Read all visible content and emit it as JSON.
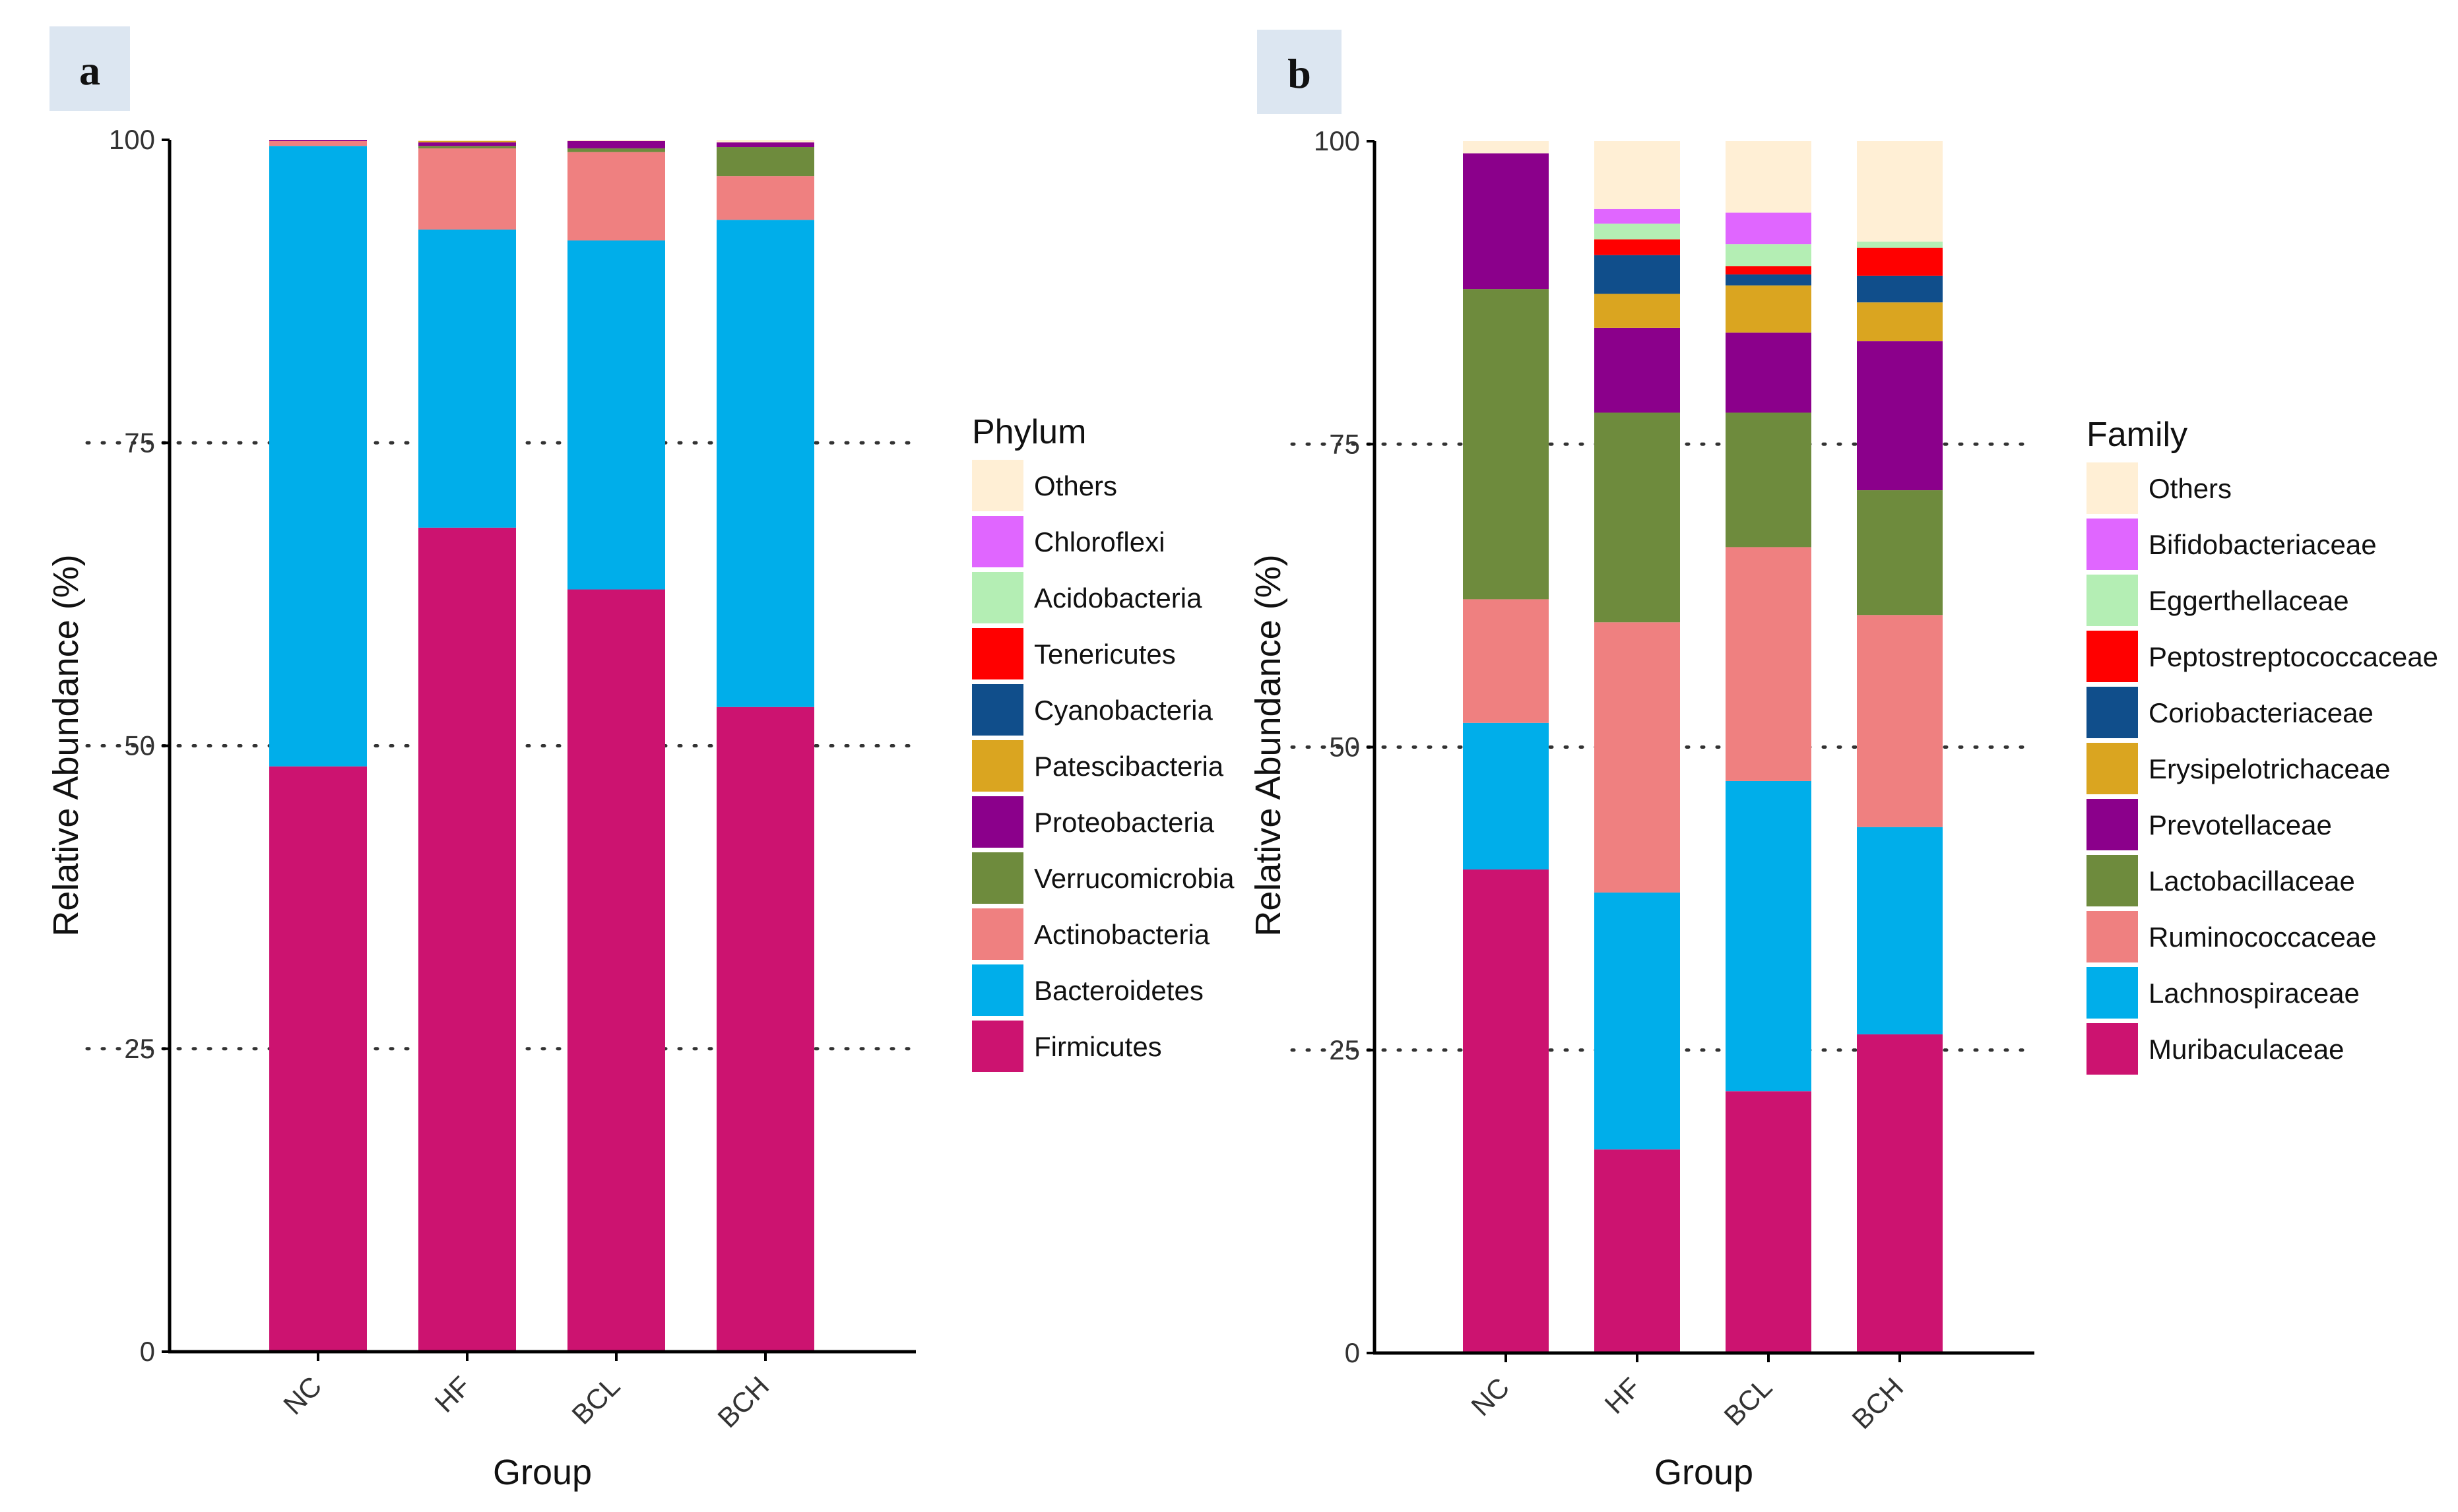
{
  "chart_data": [
    {
      "panel": "a",
      "type": "bar",
      "stacked": true,
      "xlabel": "Group",
      "ylabel": "Relative Abundance (%)",
      "ylim": [
        0,
        100
      ],
      "yticks": [
        "0",
        "25",
        "50",
        "75",
        "100"
      ],
      "gridlines": "dotted at 25, 50, 75",
      "categories": [
        "NC",
        "HF",
        "BCL",
        "BCH"
      ],
      "legend_title": "Phylum",
      "legend_position": "right",
      "series": [
        {
          "name": "Firmicutes",
          "color": "#CC1370",
          "values": [
            48.3,
            68.0,
            62.9,
            53.2
          ]
        },
        {
          "name": "Bacteroidetes",
          "color": "#00AEEA",
          "values": [
            51.2,
            24.6,
            28.8,
            40.2
          ]
        },
        {
          "name": "Actinobacteria",
          "color": "#EF8080",
          "values": [
            0.4,
            6.7,
            7.3,
            3.6
          ]
        },
        {
          "name": "Verrucomicrobia",
          "color": "#6E8B3D",
          "values": [
            0.0,
            0.2,
            0.3,
            2.4
          ]
        },
        {
          "name": "Proteobacteria",
          "color": "#8B008B",
          "values": [
            0.1,
            0.3,
            0.6,
            0.4
          ]
        },
        {
          "name": "Patescibacteria",
          "color": "#DAA520",
          "values": [
            0.0,
            0.1,
            0.0,
            0.0
          ]
        },
        {
          "name": "Cyanobacteria",
          "color": "#104E8B",
          "values": [
            0.0,
            0.0,
            0.0,
            0.0
          ]
        },
        {
          "name": "Tenericutes",
          "color": "#FF0000",
          "values": [
            0.0,
            0.0,
            0.0,
            0.0
          ]
        },
        {
          "name": "Acidobacteria",
          "color": "#B4EEB4",
          "values": [
            0.0,
            0.0,
            0.0,
            0.0
          ]
        },
        {
          "name": "Chloroflexi",
          "color": "#E066FF",
          "values": [
            0.0,
            0.0,
            0.0,
            0.0
          ]
        },
        {
          "name": "Others",
          "color": "#FFEFD5",
          "values": [
            0.0,
            0.1,
            0.1,
            0.2
          ]
        }
      ]
    },
    {
      "panel": "b",
      "type": "bar",
      "stacked": true,
      "xlabel": "Group",
      "ylabel": "Relative Abundance (%)",
      "ylim": [
        0,
        100
      ],
      "yticks": [
        "0",
        "25",
        "50",
        "75",
        "100"
      ],
      "gridlines": "dotted at 25, 50, 75",
      "categories": [
        "NC",
        "HF",
        "BCL",
        "BCH"
      ],
      "legend_title": "Family",
      "legend_position": "right",
      "series": [
        {
          "name": "Muribaculaceae",
          "color": "#CC1370",
          "values": [
            39.9,
            16.8,
            21.6,
            26.3
          ]
        },
        {
          "name": "Lachnospiraceae",
          "color": "#00AEEA",
          "values": [
            12.1,
            21.2,
            25.6,
            17.1
          ]
        },
        {
          "name": "Ruminococcaceae",
          "color": "#EF8080",
          "values": [
            10.2,
            22.3,
            19.3,
            17.5
          ]
        },
        {
          "name": "Lactobacillaceae",
          "color": "#6E8B3D",
          "values": [
            25.6,
            17.3,
            11.1,
            10.3
          ]
        },
        {
          "name": "Prevotellaceae",
          "color": "#8B008B",
          "values": [
            11.2,
            7.0,
            6.6,
            12.3
          ]
        },
        {
          "name": "Erysipelotrichaceae",
          "color": "#DAA520",
          "values": [
            0.0,
            2.8,
            3.9,
            3.2
          ]
        },
        {
          "name": "Coriobacteriaceae",
          "color": "#104E8B",
          "values": [
            0.0,
            3.2,
            0.9,
            2.2
          ]
        },
        {
          "name": "Peptostreptococcaceae",
          "color": "#FF0000",
          "values": [
            0.0,
            1.3,
            0.7,
            2.3
          ]
        },
        {
          "name": "Eggerthellaceae",
          "color": "#B4EEB4",
          "values": [
            0.0,
            1.3,
            1.8,
            0.5
          ]
        },
        {
          "name": "Bifidobacteriaceae",
          "color": "#E066FF",
          "values": [
            0.0,
            1.2,
            2.6,
            0.0
          ]
        },
        {
          "name": "Others",
          "color": "#FFEFD5",
          "values": [
            1.0,
            5.6,
            5.9,
            8.3
          ]
        }
      ]
    }
  ]
}
